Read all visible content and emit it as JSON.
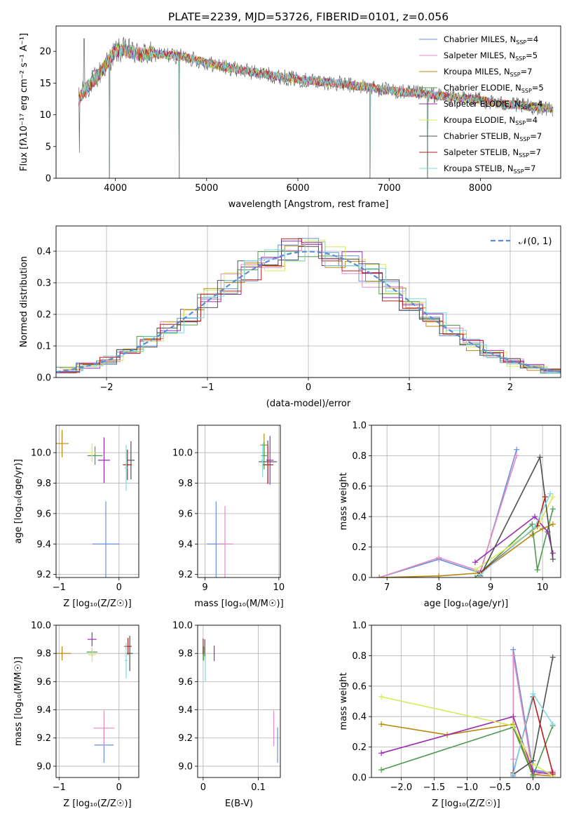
{
  "figure_title": "PLATE=2239, MJD=53726, FIBERID=0101, z=0.056",
  "series_colors": [
    "#6a8fdc",
    "#e48bc4",
    "#b8860b",
    "#4c9a4c",
    "#9a2fb0",
    "#d7e95a",
    "#505050",
    "#b81d1d",
    "#7fd7e0"
  ],
  "chart_data": [
    {
      "type": "line",
      "id": "spectrum",
      "xlabel": "wavelength [Angstrom, rest frame]",
      "ylabel": "Flux [fλ10⁻¹⁷ erg cm⁻² s⁻¹ A⁻¹]",
      "xlim": [
        3350,
        8880
      ],
      "ylim": [
        0,
        24
      ],
      "xticks": [
        4000,
        5000,
        6000,
        7000,
        8000
      ],
      "yticks": [
        0,
        5,
        10,
        15,
        20
      ],
      "grid": false,
      "legend_position": "top-right",
      "legend": [
        {
          "base": "Chabrier MILES, N",
          "sub": "SSP",
          "tail": "=4"
        },
        {
          "base": "Salpeter MILES, N",
          "sub": "SSP",
          "tail": "=5"
        },
        {
          "base": "Kroupa MILES, N",
          "sub": "SSP",
          "tail": "=7"
        },
        {
          "base": "Chabrier ELODIE, N",
          "sub": "SSP",
          "tail": "=5"
        },
        {
          "base": "Salpeter ELODIE, N",
          "sub": "SSP",
          "tail": "=4"
        },
        {
          "base": "Kroupa ELODIE, N",
          "sub": "SSP",
          "tail": "=4"
        },
        {
          "base": "Chabrier STELIB, N",
          "sub": "SSP",
          "tail": "=7"
        },
        {
          "base": "Salpeter STELIB, N",
          "sub": "SSP",
          "tail": "=7"
        },
        {
          "base": "Kroupa STELIB, N",
          "sub": "SSP",
          "tail": "=7"
        }
      ],
      "spectrum_shape": {
        "x": [
          3600,
          3700,
          3800,
          3900,
          4000,
          4100,
          4200,
          4300,
          4400,
          4600,
          4800,
          5000,
          5200,
          5400,
          5600,
          5800,
          6000,
          6200,
          6400,
          6600,
          6800,
          7000,
          7200,
          7400,
          7600,
          7800,
          8000,
          8200,
          8400,
          8600,
          8800
        ],
        "y": [
          12.5,
          14.5,
          16.0,
          18.0,
          20.0,
          20.2,
          19.8,
          19.5,
          19.6,
          19.4,
          19.0,
          18.2,
          17.5,
          17.0,
          16.5,
          16.0,
          15.6,
          15.3,
          15.0,
          14.6,
          14.3,
          13.8,
          13.5,
          13.3,
          12.9,
          12.6,
          12.3,
          11.8,
          11.5,
          11.2,
          11.0
        ]
      },
      "absorption_features": [
        {
          "x": 3934,
          "depth_to": 0
        },
        {
          "x": 4700,
          "depth_to": 0
        },
        {
          "x": 6790,
          "depth_to": 0
        },
        {
          "x": 7420,
          "depth_to": 0
        }
      ]
    },
    {
      "type": "step",
      "id": "residuals",
      "xlabel": "(data-model)/error",
      "ylabel": "Normed distribution",
      "xlim": [
        -2.5,
        2.5
      ],
      "ylim": [
        0,
        0.48
      ],
      "xticks": [
        -2,
        -1,
        0,
        1,
        2
      ],
      "yticks": [
        0.0,
        0.1,
        0.2,
        0.3,
        0.4
      ],
      "grid": true,
      "legend_position": "top-right",
      "reference": {
        "name": "𝒩(0, 1)",
        "mean": 0,
        "sigma": 1
      }
    },
    {
      "type": "scatter",
      "id": "age-vs-Z",
      "xlabel": "Z [log₁₀(Z/Z☉)]",
      "ylabel": "age  [log₁₀(age/yr)]",
      "xlim": [
        -1.05,
        0.33
      ],
      "ylim": [
        9.18,
        10.18
      ],
      "xticks": [
        -1,
        0
      ],
      "yticks": [
        9.2,
        9.4,
        9.6,
        9.8,
        10.0
      ],
      "grid": true,
      "points": [
        {
          "s": 0,
          "x": -0.22,
          "y": 9.4,
          "xe": 0.45,
          "ye": 0.56
        },
        {
          "s": 2,
          "x": -0.95,
          "y": 10.06,
          "xe": 0.22,
          "ye": 0.18
        },
        {
          "s": 3,
          "x": -0.4,
          "y": 9.98,
          "xe": 0.25,
          "ye": 0.12
        },
        {
          "s": 4,
          "x": -0.25,
          "y": 9.95,
          "xe": 0.2,
          "ye": 0.3
        },
        {
          "s": 5,
          "x": -0.45,
          "y": 10.0,
          "xe": 0.12,
          "ye": 0.12
        },
        {
          "s": 6,
          "x": 0.2,
          "y": 9.95,
          "xe": 0.12,
          "ye": 0.25
        },
        {
          "s": 7,
          "x": 0.14,
          "y": 9.92,
          "xe": 0.15,
          "ye": 0.2
        },
        {
          "s": 8,
          "x": 0.12,
          "y": 9.9,
          "xe": 0.05,
          "ye": 0.3
        }
      ]
    },
    {
      "type": "scatter",
      "id": "age-vs-mass",
      "xlabel": "mass [log₁₀(M/M☉)]",
      "ylabel": "",
      "xlim": [
        8.9,
        10.02
      ],
      "ylim": [
        9.18,
        10.18
      ],
      "xticks": [
        9,
        10
      ],
      "yticks": [
        9.2,
        9.4,
        9.6,
        9.8,
        10.0
      ],
      "grid": true,
      "points": [
        {
          "s": 0,
          "x": 9.15,
          "y": 9.4,
          "xe": 0.25,
          "ye": 0.56
        },
        {
          "s": 1,
          "x": 9.27,
          "y": 9.4,
          "xe": 0.22,
          "ye": 0.5
        },
        {
          "s": 2,
          "x": 9.8,
          "y": 10.05,
          "xe": 0.1,
          "ye": 0.15
        },
        {
          "s": 3,
          "x": 9.8,
          "y": 9.98,
          "xe": 0.08,
          "ye": 0.18
        },
        {
          "s": 4,
          "x": 9.88,
          "y": 9.95,
          "xe": 0.1,
          "ye": 0.32
        },
        {
          "s": 6,
          "x": 9.85,
          "y": 9.94,
          "xe": 0.25,
          "ye": 0.28
        },
        {
          "s": 7,
          "x": 9.85,
          "y": 9.92,
          "xe": 0.15,
          "ye": 0.25
        },
        {
          "s": 8,
          "x": 9.78,
          "y": 9.95,
          "xe": 0.05,
          "ye": 0.22
        }
      ]
    },
    {
      "type": "line",
      "id": "massweight-vs-age",
      "xlabel": "age  [log₁₀(age/yr)]",
      "ylabel": "mass weight",
      "xlim": [
        6.7,
        10.35
      ],
      "ylim": [
        0,
        1
      ],
      "xticks": [
        7,
        8,
        9,
        10
      ],
      "yticks": [
        0.0,
        0.2,
        0.4,
        0.6,
        0.8,
        1.0
      ],
      "grid": true,
      "series": [
        {
          "s": 0,
          "x": [
            6.85,
            8.0,
            8.8,
            9.5
          ],
          "y": [
            0.0,
            0.12,
            0.03,
            0.84
          ]
        },
        {
          "s": 1,
          "x": [
            6.85,
            8.0,
            8.8,
            9.5
          ],
          "y": [
            0.0,
            0.13,
            0.04,
            0.8
          ]
        },
        {
          "s": 2,
          "x": [
            6.85,
            8.0,
            8.8,
            9.8,
            10.0,
            10.2
          ],
          "y": [
            0.0,
            0.01,
            0.03,
            0.28,
            0.32,
            0.35
          ]
        },
        {
          "s": 3,
          "x": [
            8.7,
            9.8,
            9.9,
            10.2
          ],
          "y": [
            0.0,
            0.35,
            0.05,
            0.45
          ]
        },
        {
          "s": 4,
          "x": [
            8.7,
            9.85,
            10.1,
            10.2
          ],
          "y": [
            0.1,
            0.4,
            0.3,
            0.16
          ]
        },
        {
          "s": 5,
          "x": [
            8.7,
            9.9,
            10.2
          ],
          "y": [
            0.05,
            0.33,
            0.53
          ]
        },
        {
          "s": 6,
          "x": [
            8.8,
            9.95,
            10.2
          ],
          "y": [
            0.01,
            0.79,
            0.12
          ]
        },
        {
          "s": 7,
          "x": [
            8.8,
            9.9,
            10.05
          ],
          "y": [
            0.03,
            0.34,
            0.53
          ]
        },
        {
          "s": 8,
          "x": [
            8.8,
            9.85,
            10.15
          ],
          "y": [
            0.02,
            0.33,
            0.55
          ]
        }
      ]
    },
    {
      "type": "scatter",
      "id": "mass-vs-Z",
      "xlabel": "Z [log₁₀(Z/Z☉)]",
      "ylabel": "mass [log₁₀(M/M☉)]",
      "xlim": [
        -1.05,
        0.33
      ],
      "ylim": [
        8.92,
        10.0
      ],
      "xticks": [
        -1,
        0
      ],
      "yticks": [
        9.0,
        9.2,
        9.4,
        9.6,
        9.8,
        10.0
      ],
      "grid": true,
      "points": [
        {
          "s": 0,
          "x": -0.25,
          "y": 9.15,
          "xe": 0.32,
          "ye": 0.25
        },
        {
          "s": 1,
          "x": -0.25,
          "y": 9.27,
          "xe": 0.35,
          "ye": 0.25
        },
        {
          "s": 2,
          "x": -0.95,
          "y": 9.8,
          "xe": 0.3,
          "ye": 0.1
        },
        {
          "s": 3,
          "x": -0.45,
          "y": 9.81,
          "xe": 0.18,
          "ye": 0.05
        },
        {
          "s": 4,
          "x": -0.45,
          "y": 9.9,
          "xe": 0.15,
          "ye": 0.1
        },
        {
          "s": 5,
          "x": -0.45,
          "y": 9.79,
          "xe": 0.12,
          "ye": 0.1
        },
        {
          "s": 6,
          "x": 0.18,
          "y": 9.8,
          "xe": 0.1,
          "ye": 0.25
        },
        {
          "s": 7,
          "x": 0.15,
          "y": 9.85,
          "xe": 0.12,
          "ye": 0.12
        },
        {
          "s": 8,
          "x": 0.12,
          "y": 9.75,
          "xe": 0.05,
          "ye": 0.25
        }
      ]
    },
    {
      "type": "scatter",
      "id": "mass-vs-EBV",
      "xlabel": "E(B-V)",
      "ylabel": "",
      "xlim": [
        -0.01,
        0.14
      ],
      "ylim": [
        8.92,
        10.0
      ],
      "xticks": [
        0.0,
        0.1
      ],
      "yticks": [
        9.0,
        9.2,
        9.4,
        9.6,
        9.8,
        10.0
      ],
      "grid": true,
      "points": [
        {
          "s": 0,
          "x": 0.135,
          "y": 9.15,
          "xe": 0,
          "ye": 0.25
        },
        {
          "s": 1,
          "x": 0.128,
          "y": 9.27,
          "xe": 0,
          "ye": 0.25
        },
        {
          "s": 2,
          "x": 0.0,
          "y": 9.8,
          "xe": 0,
          "ye": 0.1
        },
        {
          "s": 3,
          "x": 0.001,
          "y": 9.8,
          "xe": 0,
          "ye": 0.1
        },
        {
          "s": 4,
          "x": 0.02,
          "y": 9.8,
          "xe": 0,
          "ye": 0.11
        },
        {
          "s": 5,
          "x": 0.002,
          "y": 9.8,
          "xe": 0,
          "ye": 0.1
        },
        {
          "s": 6,
          "x": 0.003,
          "y": 9.84,
          "xe": 0,
          "ye": 0.12
        },
        {
          "s": 7,
          "x": 0.0,
          "y": 9.85,
          "xe": 0,
          "ye": 0.11
        },
        {
          "s": 8,
          "x": 0.004,
          "y": 9.7,
          "xe": 0,
          "ye": 0.2
        }
      ]
    },
    {
      "type": "line",
      "id": "massweight-vs-Z",
      "xlabel": "Z [log₁₀(Z/Z☉)]",
      "ylabel": "mass weight",
      "xlim": [
        -2.45,
        0.42
      ],
      "ylim": [
        0,
        1
      ],
      "xticks": [
        -2.0,
        -1.5,
        -1.0,
        -0.5,
        0.0
      ],
      "yticks": [
        0.0,
        0.2,
        0.4,
        0.6,
        0.8,
        1.0
      ],
      "grid": true,
      "series": [
        {
          "s": 0,
          "x": [
            -0.3,
            -0.3,
            0.0,
            0.3
          ],
          "y": [
            0.01,
            0.84,
            0.05,
            0.03
          ]
        },
        {
          "s": 1,
          "x": [
            -0.3,
            -0.3,
            0.0,
            0.3
          ],
          "y": [
            0.12,
            0.8,
            0.02,
            0.04
          ]
        },
        {
          "s": 2,
          "x": [
            -2.3,
            -1.3,
            -0.3,
            0.0,
            0.3
          ],
          "y": [
            0.35,
            0.28,
            0.35,
            0.02,
            0.01
          ]
        },
        {
          "s": 3,
          "x": [
            -2.3,
            -0.3,
            0.0,
            0.3
          ],
          "y": [
            0.05,
            0.33,
            0.01,
            0.34
          ]
        },
        {
          "s": 4,
          "x": [
            -2.3,
            -0.3,
            0.0,
            0.3
          ],
          "y": [
            0.16,
            0.4,
            0.04,
            0.02
          ]
        },
        {
          "s": 5,
          "x": [
            -2.3,
            -0.3,
            0.0,
            0.3
          ],
          "y": [
            0.53,
            0.34,
            0.09,
            0.01
          ]
        },
        {
          "s": 6,
          "x": [
            -0.3,
            0.0,
            0.3
          ],
          "y": [
            0.02,
            0.11,
            0.79
          ]
        },
        {
          "s": 7,
          "x": [
            -0.3,
            0.0,
            0.3
          ],
          "y": [
            0.03,
            0.53,
            0.03
          ]
        },
        {
          "s": 8,
          "x": [
            -0.3,
            0.0,
            0.3
          ],
          "y": [
            0.02,
            0.55,
            0.35
          ]
        }
      ]
    }
  ]
}
